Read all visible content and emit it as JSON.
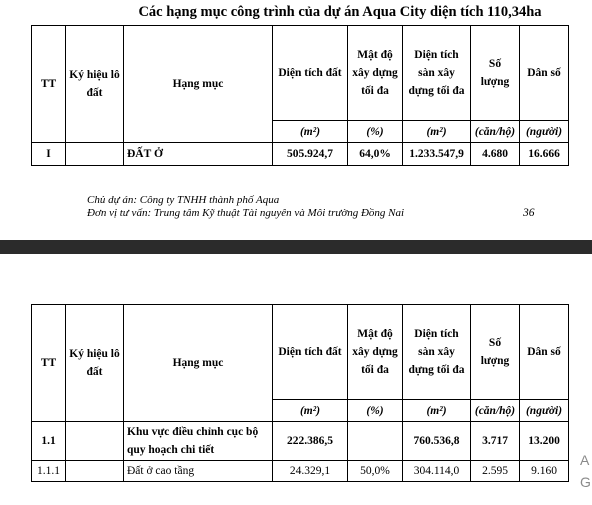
{
  "title": "Các hạng mục công trình của dự án Aqua City diện tích 110,34ha",
  "headers": {
    "tt": "TT",
    "ky_hieu": "Ký hiệu lô đất",
    "hang_muc": "Hạng mục",
    "dien_tich": "Diện tích đất",
    "mat_do": "Mật độ xây dựng tối đa",
    "dien_tich_san": "Diện tích sàn xây dựng tối đa",
    "so_luong": "Số lượng",
    "dan_so": "Dân số"
  },
  "units": {
    "dien_tich": "(m²)",
    "mat_do": "(%)",
    "dien_tich_san": "(m²)",
    "so_luong": "(căn/hộ)",
    "dan_so": "(người)"
  },
  "page1_rows": [
    {
      "tt": "I",
      "ky_hieu": "",
      "hang_muc": "ĐẤT Ở",
      "dien_tich": "505.924,7",
      "mat_do": "64,0%",
      "dien_tich_san": "1.233.547,9",
      "so_luong": "4.680",
      "dan_so": "16.666"
    }
  ],
  "footer": {
    "chu_du_an": "Chủ dự án: Công ty TNHH thành phố Aqua",
    "don_vi": "Đơn vị tư vấn: Trung tâm Kỹ thuật Tài nguyên và Môi trường Đồng Nai",
    "page_number": "36"
  },
  "page2_rows": [
    {
      "tt": "1.1",
      "ky_hieu": "",
      "hang_muc": "Khu vực điều chỉnh cục bộ quy hoạch chi tiết",
      "dien_tich": "222.386,5",
      "mat_do": "",
      "dien_tich_san": "760.536,8",
      "so_luong": "3.717",
      "dan_so": "13.200"
    },
    {
      "tt": "1.1.1",
      "ky_hieu": "",
      "hang_muc": "Đất ở cao tầng",
      "dien_tich": "24.329,1",
      "mat_do": "50,0%",
      "dien_tich_san": "304.114,0",
      "so_luong": "2.595",
      "dan_so": "9.160"
    }
  ],
  "side_glyphs": [
    "A",
    "G"
  ]
}
